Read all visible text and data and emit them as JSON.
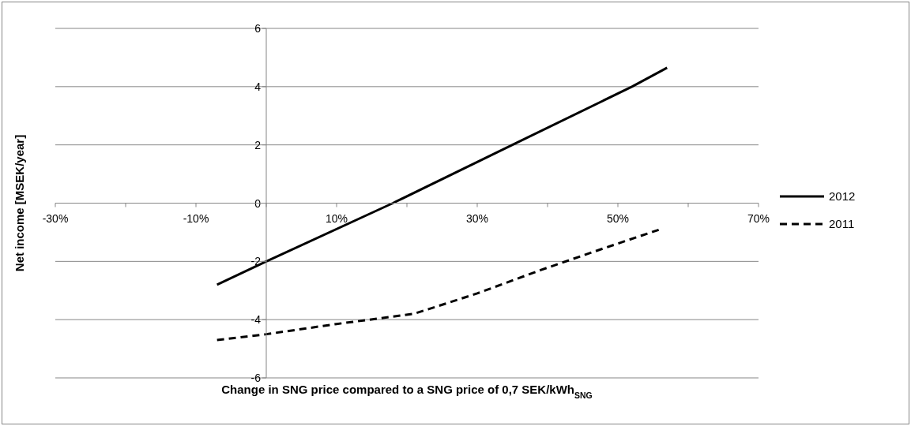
{
  "chart_data": {
    "type": "line",
    "xlabel": "Change in SNG price compared to a SNG price of 0,7 SEK/kWh$_{SNG}$",
    "ylabel": "Net income [MSEK/year]",
    "xlim": [
      -30,
      70
    ],
    "xticks": [
      {
        "value": -30,
        "label": "-30%"
      },
      {
        "value": -20,
        "label": null
      },
      {
        "value": -10,
        "label": "-10%"
      },
      {
        "value": 0,
        "label": null
      },
      {
        "value": 10,
        "label": "10%"
      },
      {
        "value": 20,
        "label": null
      },
      {
        "value": 30,
        "label": "30%"
      },
      {
        "value": 40,
        "label": null
      },
      {
        "value": 50,
        "label": "50%"
      },
      {
        "value": 60,
        "label": null
      },
      {
        "value": 70,
        "label": "70%"
      }
    ],
    "ylim": [
      -6,
      6
    ],
    "yticks": [
      -6,
      -4,
      -2,
      0,
      2,
      4,
      6
    ],
    "grid": "y",
    "legend": "right",
    "marker": "none",
    "series": [
      {
        "name": "2012",
        "color": "#000000",
        "line_style": "solid",
        "x": [
          -7,
          0,
          18,
          35,
          52,
          57
        ],
        "values": [
          -2.8,
          -2,
          0,
          2,
          4,
          4.65
        ]
      },
      {
        "name": "2011",
        "color": "#000000",
        "line_style": "dashed",
        "x": [
          -7,
          0,
          10,
          21,
          30,
          39,
          48,
          56
        ],
        "values": [
          -4.7,
          -4.5,
          -4.15,
          -3.8,
          -3.1,
          -2.3,
          -1.55,
          -0.9
        ]
      }
    ]
  }
}
